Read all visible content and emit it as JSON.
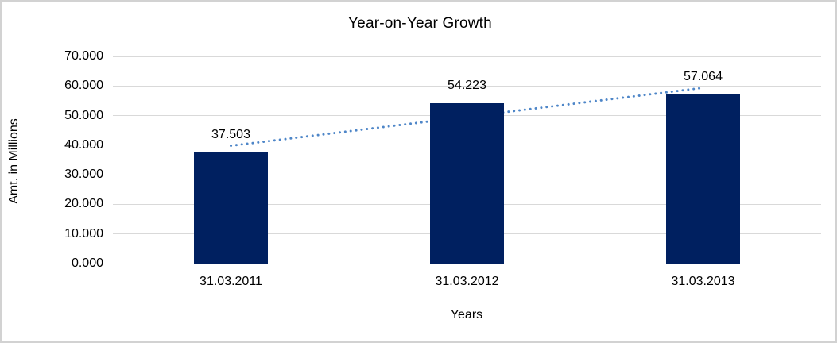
{
  "frame": {
    "background": "#ffffff",
    "border_color": "#d2d2d2"
  },
  "chart_data": {
    "type": "bar",
    "title": "Year-on-Year Growth",
    "xlabel": "Years",
    "ylabel": "Amt. in Millions",
    "categories": [
      "31.03.2011",
      "31.03.2012",
      "31.03.2013"
    ],
    "values": [
      37.503,
      54.223,
      57.064
    ],
    "data_labels": [
      "37.503",
      "54.223",
      "57.064"
    ],
    "ylim": [
      0,
      70
    ],
    "ytick_step": 10,
    "ytick_labels": [
      "70.000",
      "60.000",
      "50.000",
      "40.000",
      "30.000",
      "20.000",
      "10.000",
      "0.000"
    ],
    "grid": true,
    "legend": "none",
    "trendline": {
      "type": "linear",
      "style": "dotted",
      "fitted_endpoint_values": [
        39.816,
        59.377
      ]
    },
    "colors": {
      "bar": "#002060",
      "trendline": "#4e86c8",
      "gridline": "#d9d9d9",
      "text": "#000000"
    }
  }
}
